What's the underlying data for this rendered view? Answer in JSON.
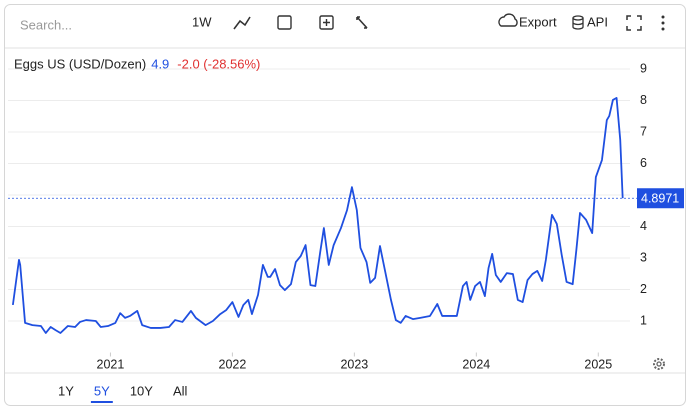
{
  "toolbar": {
    "search": "Search...",
    "interval": "1W",
    "export": "Export",
    "api": "API"
  },
  "ranges": {
    "items": [
      "1Y",
      "5Y",
      "10Y",
      "All"
    ],
    "active": "5Y"
  },
  "chart_data": {
    "type": "line",
    "legend": {
      "last": "4.9",
      "change": "-2.0 (-28.56%)"
    },
    "current_value": 4.8971,
    "x": [
      2020.2,
      2020.25,
      2020.26,
      2020.3,
      2020.36,
      2020.43,
      2020.47,
      2020.51,
      2020.55,
      2020.59,
      2020.65,
      2020.71,
      2020.75,
      2020.8,
      2020.88,
      2020.92,
      2020.98,
      2021.04,
      2021.08,
      2021.12,
      2021.16,
      2021.22,
      2021.26,
      2021.33,
      2021.41,
      2021.48,
      2021.53,
      2021.59,
      2021.66,
      2021.7,
      2021.78,
      2021.84,
      2021.9,
      2021.95,
      2022.0,
      2022.05,
      2022.09,
      2022.13,
      2022.16,
      2022.21,
      2022.25,
      2022.29,
      2022.31,
      2022.35,
      2022.39,
      2022.43,
      2022.48,
      2022.52,
      2022.56,
      2022.6,
      2022.64,
      2022.68,
      2022.72,
      2022.75,
      2022.79,
      2022.83,
      2022.89,
      2022.94,
      2022.98,
      2023.02,
      2023.05,
      2023.1,
      2023.13,
      2023.17,
      2023.21,
      2023.25,
      2023.3,
      2023.34,
      2023.38,
      2023.42,
      2023.48,
      2023.54,
      2023.62,
      2023.68,
      2023.72,
      2023.79,
      2023.84,
      2023.89,
      2023.92,
      2023.95,
      2023.99,
      2024.03,
      2024.07,
      2024.1,
      2024.13,
      2024.16,
      2024.2,
      2024.25,
      2024.3,
      2024.34,
      2024.38,
      2024.42,
      2024.46,
      2024.5,
      2024.54,
      2024.57,
      2024.62,
      2024.66,
      2024.7,
      2024.74,
      2024.79,
      2024.82,
      2024.85,
      2024.9,
      2024.95,
      2024.98,
      2025.03,
      2025.07,
      2025.09,
      2025.12,
      2025.15,
      2025.18,
      2025.2
    ],
    "series": [
      {
        "name": "Eggs US (USD/Dozen)",
        "color": "#1f4fe0",
        "values": [
          1.51,
          2.94,
          2.78,
          0.94,
          0.87,
          0.84,
          0.62,
          0.81,
          0.71,
          0.62,
          0.84,
          0.81,
          0.97,
          1.03,
          1.0,
          0.81,
          0.84,
          0.94,
          1.25,
          1.1,
          1.16,
          1.32,
          0.87,
          0.78,
          0.78,
          0.81,
          1.03,
          0.97,
          1.32,
          1.1,
          0.87,
          1.0,
          1.22,
          1.35,
          1.6,
          1.13,
          1.51,
          1.67,
          1.22,
          1.83,
          2.78,
          2.4,
          2.4,
          2.65,
          2.14,
          1.98,
          2.17,
          2.87,
          3.06,
          3.41,
          2.14,
          2.11,
          3.19,
          3.95,
          2.78,
          3.41,
          3.95,
          4.52,
          5.25,
          4.52,
          3.32,
          2.87,
          2.21,
          2.37,
          3.38,
          2.62,
          1.67,
          1.03,
          0.94,
          1.16,
          1.06,
          1.1,
          1.16,
          1.54,
          1.16,
          1.16,
          1.16,
          2.11,
          2.24,
          1.67,
          2.11,
          2.24,
          1.79,
          2.68,
          3.13,
          2.46,
          2.24,
          2.52,
          2.49,
          1.67,
          1.6,
          2.3,
          2.49,
          2.59,
          2.27,
          2.94,
          4.37,
          4.08,
          3.1,
          2.24,
          2.17,
          3.25,
          4.43,
          4.21,
          3.79,
          5.57,
          6.11,
          7.38,
          7.51,
          8.02,
          8.08,
          6.75,
          4.9
        ]
      }
    ],
    "xlim": [
      2020.16,
      2025.26
    ],
    "xticks": [
      2021,
      2022,
      2023,
      2024,
      2025
    ],
    "ylim": [
      0,
      9.8
    ],
    "yticks": [
      1,
      2,
      3,
      4,
      5,
      6,
      7,
      8,
      9
    ],
    "grid": true
  }
}
